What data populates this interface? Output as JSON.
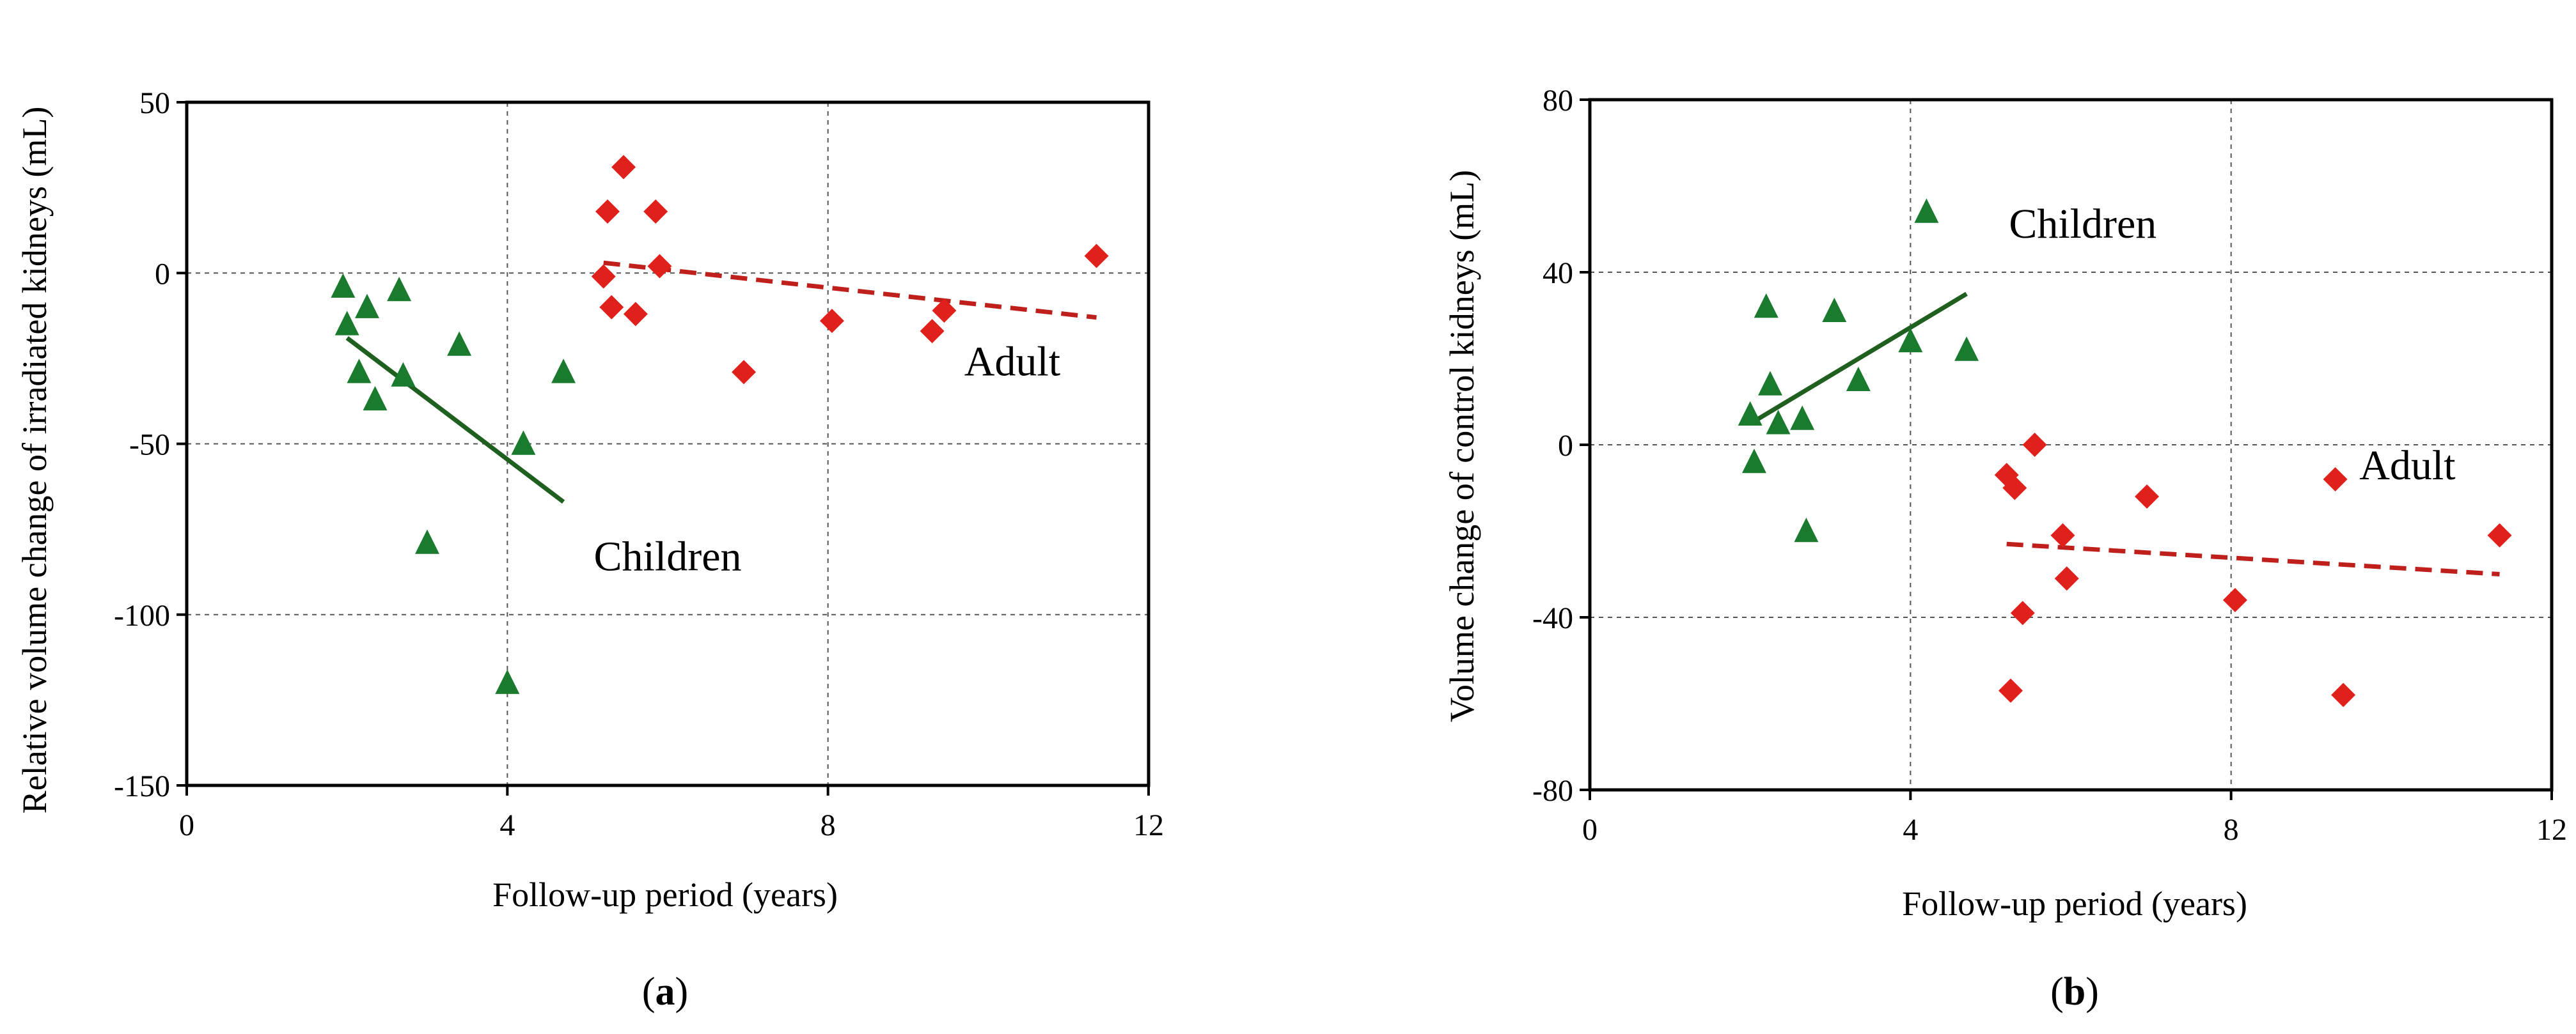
{
  "chart_data": [
    {
      "id": "a",
      "type": "scatter",
      "caption_letter": "a",
      "xlabel": "Follow-up period (years)",
      "ylabel": "Relative volume change of irradiated kidneys (mL)",
      "xlim": [
        0,
        12
      ],
      "ylim": [
        -150,
        50
      ],
      "xticks": [
        0,
        4,
        8,
        12
      ],
      "yticks": [
        -150,
        -100,
        -50,
        0,
        50
      ],
      "grid": true,
      "series": [
        {
          "name": "Children",
          "marker": "triangle",
          "color": "#1a7a2e",
          "points": [
            [
              1.95,
              -4
            ],
            [
              2.0,
              -15
            ],
            [
              2.15,
              -29
            ],
            [
              2.25,
              -10
            ],
            [
              2.35,
              -37
            ],
            [
              2.65,
              -5
            ],
            [
              2.7,
              -30
            ],
            [
              3.0,
              -79
            ],
            [
              3.4,
              -21
            ],
            [
              4.0,
              -120
            ],
            [
              4.2,
              -50
            ],
            [
              4.7,
              -29
            ]
          ],
          "trend": {
            "x": [
              2.0,
              4.7
            ],
            "y": [
              -19,
              -67
            ],
            "style": "solid",
            "color": "#1f5f1f"
          }
        },
        {
          "name": "Adult",
          "marker": "diamond",
          "color": "#e0201b",
          "points": [
            [
              5.2,
              -1
            ],
            [
              5.25,
              18
            ],
            [
              5.3,
              -10
            ],
            [
              5.45,
              31
            ],
            [
              5.6,
              -12
            ],
            [
              5.85,
              18
            ],
            [
              5.9,
              2
            ],
            [
              6.95,
              -29
            ],
            [
              8.05,
              -14
            ],
            [
              9.3,
              -17
            ],
            [
              9.45,
              -11
            ],
            [
              11.35,
              5
            ]
          ],
          "trend": {
            "x": [
              5.2,
              11.35
            ],
            "y": [
              3,
              -13
            ],
            "style": "dashed",
            "color": "#c0201b"
          }
        }
      ],
      "annotations": [
        {
          "text": "Children",
          "x": 6.0,
          "y": -87
        },
        {
          "text": "Adult",
          "x": 10.3,
          "y": -30
        }
      ]
    },
    {
      "id": "b",
      "type": "scatter",
      "caption_letter": "b",
      "xlabel": "Follow-up period (years)",
      "ylabel": "Volume change of control kidneys (mL)",
      "xlim": [
        0,
        12
      ],
      "ylim": [
        -80,
        80
      ],
      "xticks": [
        0,
        4,
        8,
        12
      ],
      "yticks": [
        -80,
        -40,
        0,
        40,
        80
      ],
      "grid": true,
      "series": [
        {
          "name": "Children",
          "marker": "triangle",
          "color": "#1a7a2e",
          "points": [
            [
              2.0,
              7
            ],
            [
              2.05,
              -4
            ],
            [
              2.2,
              32
            ],
            [
              2.25,
              14
            ],
            [
              2.35,
              5
            ],
            [
              2.65,
              6
            ],
            [
              2.7,
              -20
            ],
            [
              3.05,
              31
            ],
            [
              3.35,
              15
            ],
            [
              4.0,
              24
            ],
            [
              4.2,
              54
            ],
            [
              4.7,
              22
            ]
          ],
          "trend": {
            "x": [
              2.1,
              4.7
            ],
            "y": [
              6,
              35
            ],
            "style": "solid",
            "color": "#1f5f1f"
          }
        },
        {
          "name": "Adult",
          "marker": "diamond",
          "color": "#e0201b",
          "points": [
            [
              5.2,
              -7
            ],
            [
              5.25,
              -57
            ],
            [
              5.3,
              -10
            ],
            [
              5.4,
              -39
            ],
            [
              5.55,
              0
            ],
            [
              5.9,
              -21
            ],
            [
              5.95,
              -31
            ],
            [
              6.95,
              -12
            ],
            [
              8.05,
              -36
            ],
            [
              9.3,
              -8
            ],
            [
              9.4,
              -58
            ],
            [
              11.35,
              -21
            ]
          ],
          "trend": {
            "x": [
              5.2,
              11.35
            ],
            "y": [
              -23,
              -30
            ],
            "style": "dashed",
            "color": "#c0201b"
          }
        }
      ],
      "annotations": [
        {
          "text": "Children",
          "x": 6.15,
          "y": 48
        },
        {
          "text": "Adult",
          "x": 10.2,
          "y": -8
        }
      ]
    }
  ]
}
